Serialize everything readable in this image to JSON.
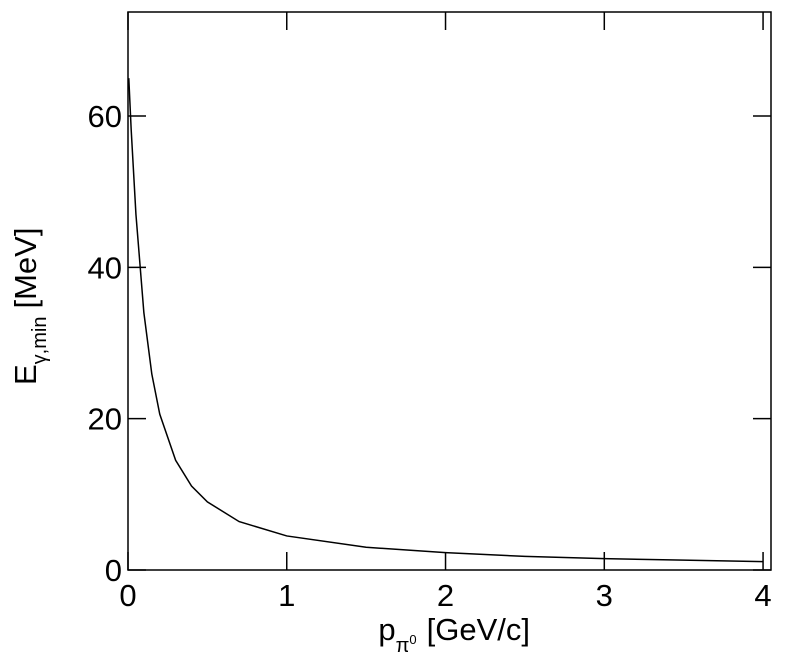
{
  "chart_data": {
    "type": "line",
    "x_label": {
      "main": "p",
      "sub": "π",
      "sup": "0",
      "unit": "[GeV/c]"
    },
    "y_label": {
      "main": "E",
      "sub": "γ,min",
      "unit": "[MeV]"
    },
    "x": [
      0.005,
      0.02,
      0.05,
      0.1,
      0.15,
      0.2,
      0.3,
      0.4,
      0.5,
      0.7,
      1,
      1.5,
      2,
      2.5,
      3,
      3.5,
      4
    ],
    "series": [
      {
        "color": "#000000",
        "values": [
          65.0,
          58.2,
          47.0,
          34.0,
          25.9,
          20.6,
          14.5,
          11.1,
          9.0,
          6.4,
          4.5,
          3.0,
          2.3,
          1.8,
          1.5,
          1.3,
          1.1
        ]
      }
    ],
    "xlim": [
      0,
      4.05
    ],
    "ylim": [
      0,
      73.75
    ],
    "xticks": [
      0,
      1,
      2,
      3,
      4
    ],
    "yticks": [
      0,
      20,
      40,
      60
    ]
  }
}
